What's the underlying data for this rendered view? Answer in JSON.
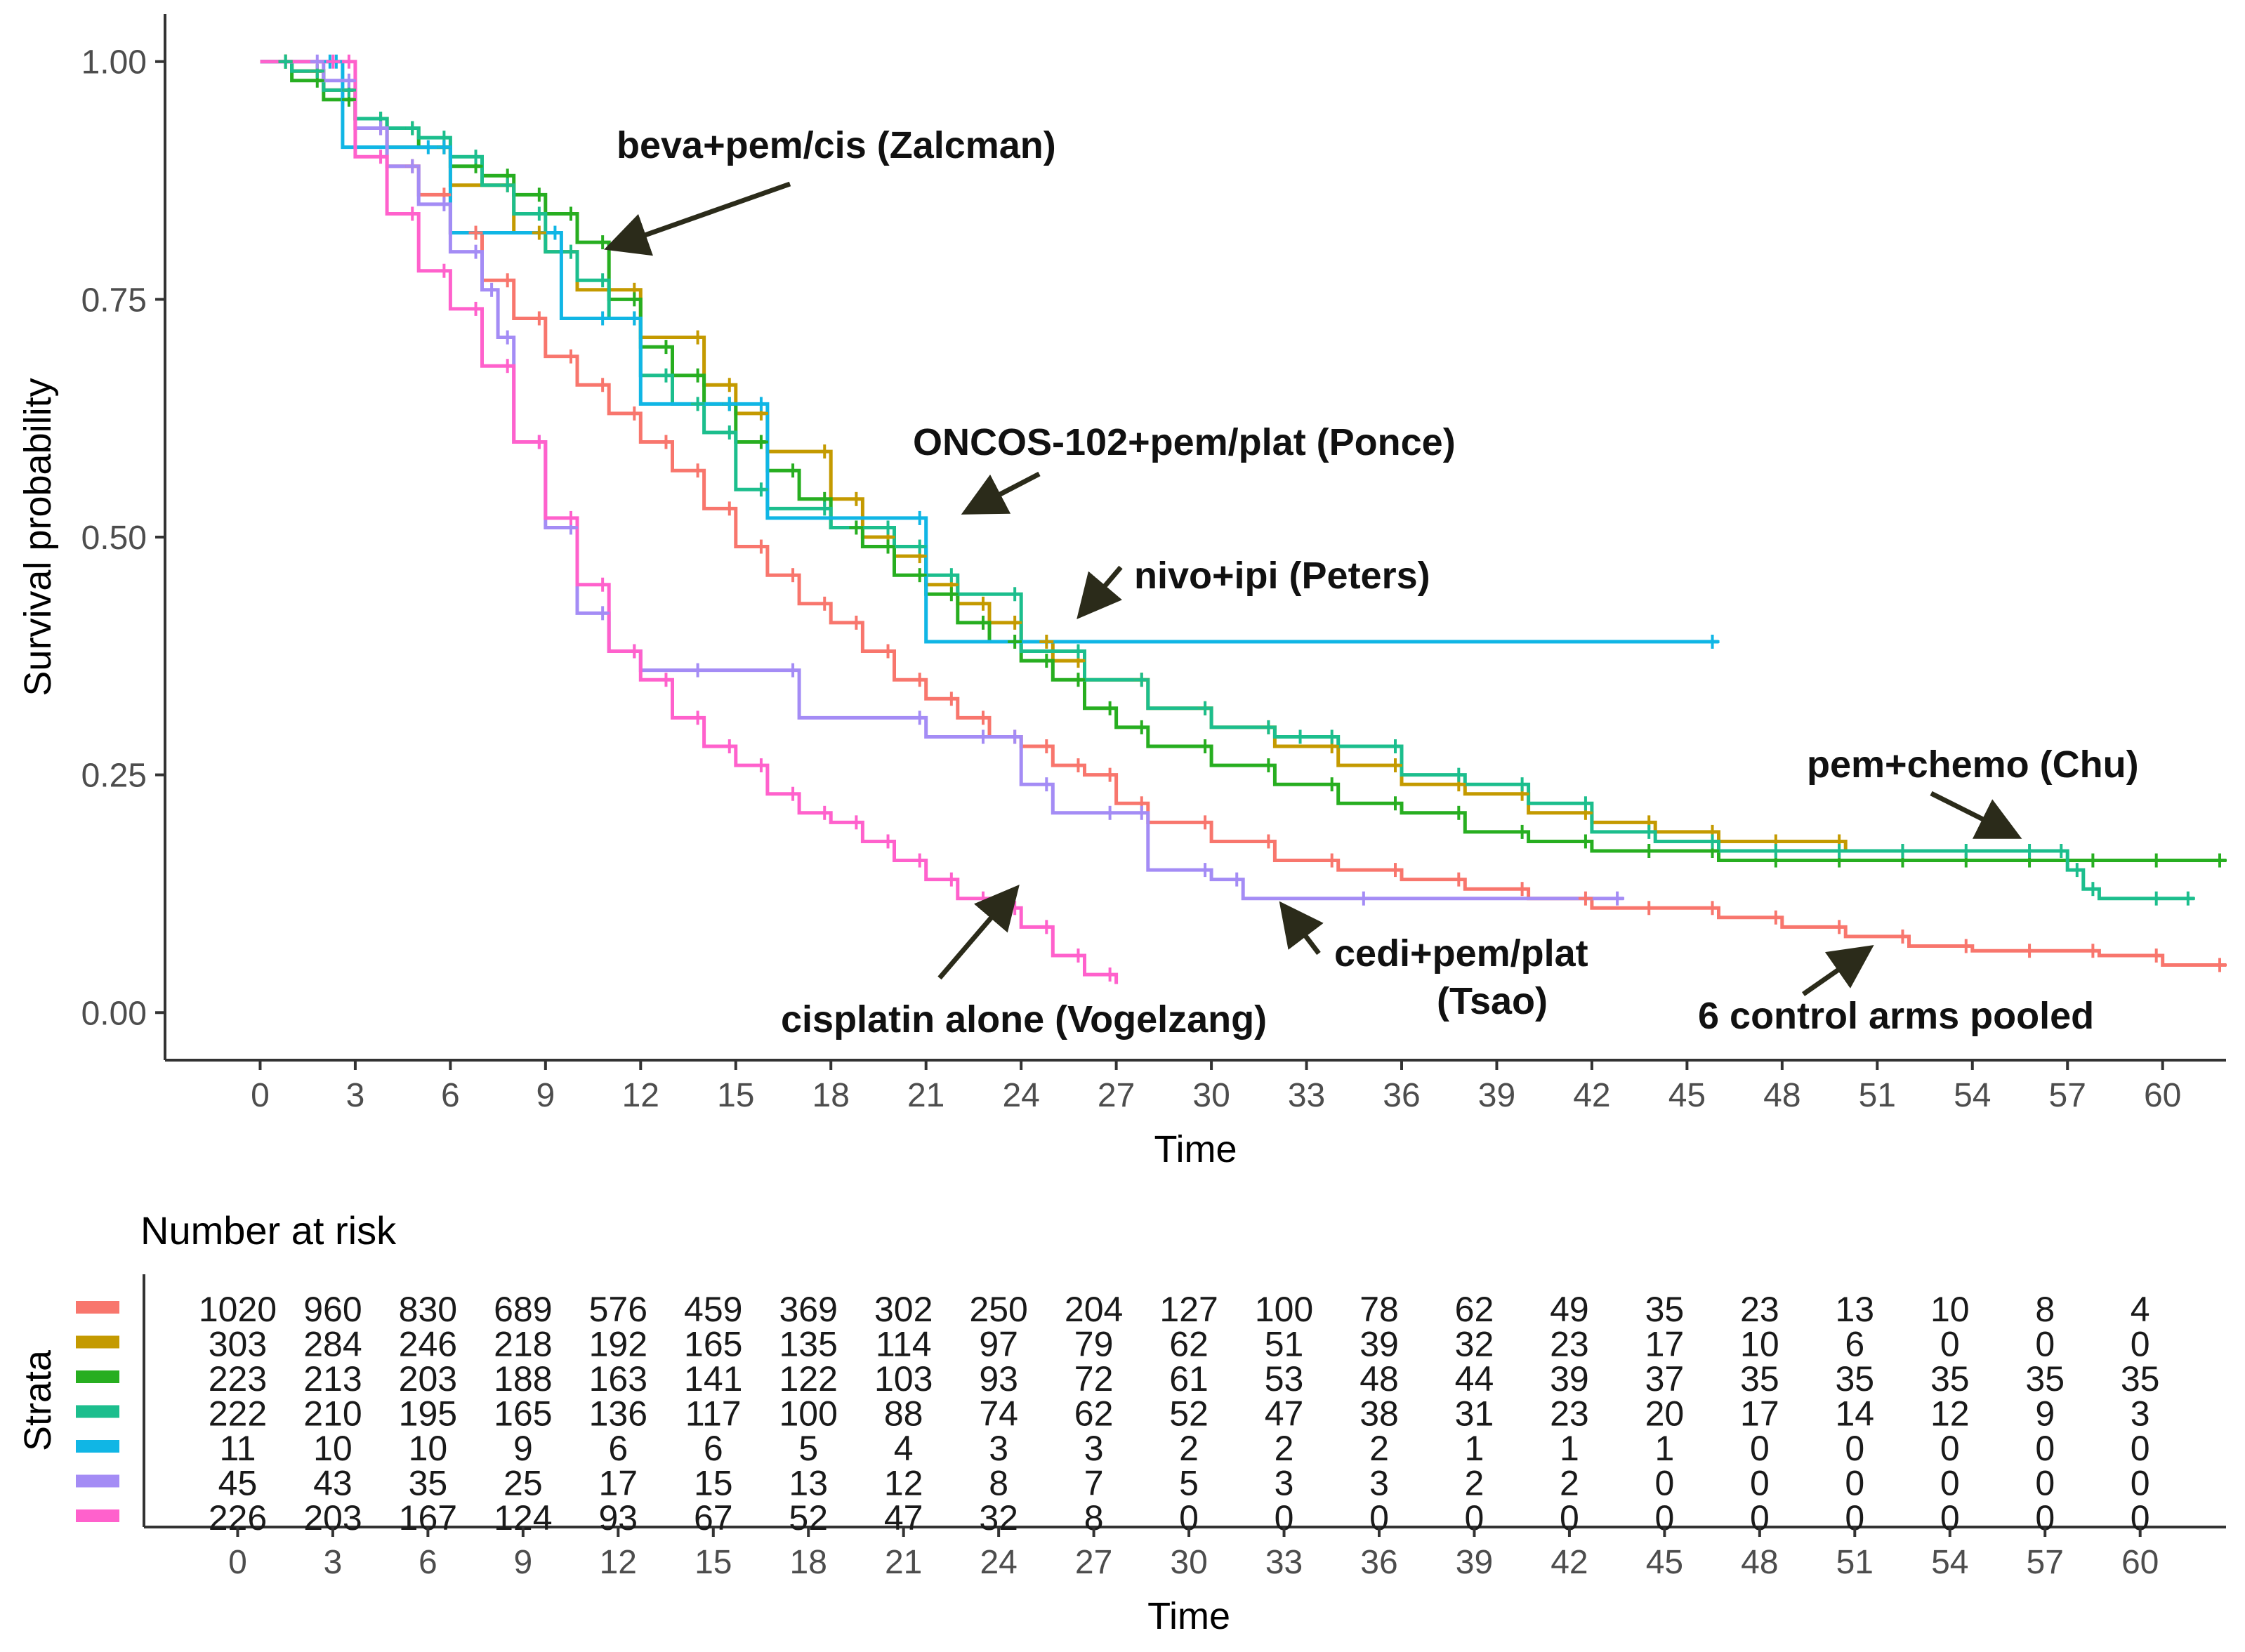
{
  "chart_data": [
    {
      "type": "line",
      "subtype": "kaplan-meier",
      "xlabel": "Time",
      "ylabel": "Survival probability",
      "xlim": [
        -3,
        62
      ],
      "ylim": [
        -0.05,
        1.05
      ],
      "xticks": [
        "0",
        "3",
        "6",
        "9",
        "12",
        "15",
        "18",
        "21",
        "24",
        "27",
        "30",
        "33",
        "36",
        "39",
        "42",
        "45",
        "48",
        "51",
        "54",
        "57",
        "60"
      ],
      "yticks": [
        "0.00",
        "0.25",
        "0.50",
        "0.75",
        "1.00"
      ],
      "grid": false,
      "series": [
        {
          "name": "6 control arms pooled",
          "color": "#F8766D",
          "x": [
            0,
            1,
            2,
            3,
            4,
            5,
            6,
            7,
            8,
            9,
            10,
            11,
            12,
            13,
            14,
            15,
            16,
            17,
            18,
            19,
            20,
            21,
            22,
            23,
            24,
            25,
            26,
            27,
            28,
            30,
            32,
            34,
            36,
            38,
            40,
            42,
            44,
            46,
            48,
            50,
            52,
            54,
            56,
            58,
            60,
            62
          ],
          "y": [
            1.0,
            0.99,
            0.97,
            0.93,
            0.89,
            0.86,
            0.82,
            0.77,
            0.73,
            0.69,
            0.66,
            0.63,
            0.6,
            0.57,
            0.53,
            0.49,
            0.46,
            0.43,
            0.41,
            0.38,
            0.35,
            0.33,
            0.31,
            0.29,
            0.28,
            0.26,
            0.25,
            0.22,
            0.2,
            0.18,
            0.16,
            0.15,
            0.14,
            0.13,
            0.12,
            0.11,
            0.11,
            0.1,
            0.09,
            0.08,
            0.07,
            0.065,
            0.065,
            0.06,
            0.05,
            0.05
          ]
        },
        {
          "name": "nivo+ipi (Peters)",
          "color": "#C49A00",
          "x": [
            0,
            1,
            2,
            3,
            4,
            6,
            8,
            9,
            10,
            12,
            14,
            15,
            16,
            18,
            19,
            20,
            21,
            22,
            23,
            24,
            25,
            26,
            28,
            30,
            32,
            34,
            36,
            38,
            40,
            42,
            44,
            46,
            48,
            50,
            52
          ],
          "y": [
            1.0,
            0.99,
            0.97,
            0.94,
            0.91,
            0.87,
            0.82,
            0.8,
            0.76,
            0.71,
            0.66,
            0.63,
            0.59,
            0.54,
            0.5,
            0.48,
            0.45,
            0.43,
            0.41,
            0.39,
            0.37,
            0.35,
            0.32,
            0.3,
            0.28,
            0.26,
            0.24,
            0.23,
            0.21,
            0.2,
            0.19,
            0.18,
            0.18,
            0.17,
            0.17
          ]
        },
        {
          "name": "beva+pem/cis (Zalcman)",
          "color": "#27AE20",
          "x": [
            0,
            1,
            2,
            3,
            4,
            5,
            6,
            7,
            8,
            9,
            10,
            11,
            12,
            13,
            14,
            15,
            16,
            17,
            18,
            19,
            20,
            21,
            22,
            23,
            24,
            25,
            26,
            27,
            28,
            30,
            32,
            34,
            36,
            38,
            40,
            42,
            44,
            46,
            48,
            50,
            52,
            54,
            56,
            58,
            60,
            62
          ],
          "y": [
            1.0,
            0.98,
            0.96,
            0.94,
            0.93,
            0.91,
            0.89,
            0.88,
            0.86,
            0.84,
            0.81,
            0.75,
            0.7,
            0.67,
            0.64,
            0.6,
            0.57,
            0.54,
            0.51,
            0.49,
            0.46,
            0.44,
            0.41,
            0.39,
            0.37,
            0.35,
            0.32,
            0.3,
            0.28,
            0.26,
            0.24,
            0.22,
            0.21,
            0.19,
            0.18,
            0.17,
            0.17,
            0.16,
            0.16,
            0.16,
            0.16,
            0.16,
            0.16,
            0.16,
            0.16,
            0.16
          ]
        },
        {
          "name": "pem+chemo (Chu)",
          "color": "#1CBE8D",
          "x": [
            0,
            1,
            2,
            3,
            4,
            5,
            6,
            7,
            8,
            9,
            10,
            11,
            12,
            13,
            14,
            15,
            16,
            18,
            20,
            21,
            22,
            24,
            26,
            28,
            30,
            32,
            33,
            34,
            36,
            38,
            40,
            42,
            44,
            46,
            48,
            50,
            52,
            54,
            56,
            57,
            57.5,
            58,
            60,
            61
          ],
          "y": [
            1.0,
            0.99,
            0.97,
            0.94,
            0.93,
            0.92,
            0.9,
            0.87,
            0.84,
            0.8,
            0.77,
            0.73,
            0.67,
            0.64,
            0.61,
            0.55,
            0.53,
            0.51,
            0.49,
            0.46,
            0.44,
            0.38,
            0.35,
            0.32,
            0.3,
            0.29,
            0.29,
            0.28,
            0.25,
            0.24,
            0.22,
            0.19,
            0.18,
            0.17,
            0.17,
            0.17,
            0.17,
            0.17,
            0.17,
            0.15,
            0.13,
            0.12,
            0.12,
            0.12
          ]
        },
        {
          "name": "ONCOS-102+pem/plat (Ponce)",
          "color": "#10B6E5",
          "x": [
            0,
            2.4,
            2.6,
            5.5,
            6,
            9.5,
            11,
            12,
            15,
            16,
            21,
            46
          ],
          "y": [
            1.0,
            1.0,
            0.91,
            0.91,
            0.82,
            0.73,
            0.73,
            0.64,
            0.64,
            0.52,
            0.39,
            0.39
          ]
        },
        {
          "name": "cedi+pem/plat (Tsao)",
          "color": "#A48CF5",
          "x": [
            0,
            2,
            3,
            4,
            5,
            6,
            7,
            7.5,
            8,
            9,
            10,
            11,
            12,
            14,
            17,
            21,
            23,
            24,
            25,
            27,
            28,
            30,
            31,
            35,
            43
          ],
          "y": [
            1.0,
            0.98,
            0.93,
            0.89,
            0.85,
            0.8,
            0.76,
            0.71,
            0.6,
            0.51,
            0.42,
            0.38,
            0.36,
            0.36,
            0.31,
            0.29,
            0.29,
            0.24,
            0.21,
            0.21,
            0.15,
            0.14,
            0.12,
            0.12,
            0.12
          ]
        },
        {
          "name": "cisplatin alone (Vogelzang)",
          "color": "#FF61CC",
          "x": [
            0,
            2.5,
            3,
            4,
            5,
            6,
            7,
            8,
            9,
            10,
            11,
            12,
            13,
            14,
            15,
            16,
            17,
            18,
            19,
            20,
            21,
            22,
            23,
            24,
            25,
            26,
            27
          ],
          "y": [
            1.0,
            1.0,
            0.9,
            0.84,
            0.78,
            0.74,
            0.68,
            0.6,
            0.52,
            0.45,
            0.38,
            0.35,
            0.31,
            0.28,
            0.26,
            0.23,
            0.21,
            0.2,
            0.18,
            0.16,
            0.14,
            0.12,
            0.11,
            0.09,
            0.06,
            0.04,
            0.03
          ]
        }
      ],
      "annotations": [
        {
          "text": "beva+pem/cis (Zalcman)",
          "target_series": "beva+pem/cis (Zalcman)"
        },
        {
          "text": "ONCOS-102+pem/plat (Ponce)",
          "target_series": "ONCOS-102+pem/plat (Ponce)"
        },
        {
          "text": "nivo+ipi (Peters)",
          "target_series": "nivo+ipi (Peters)"
        },
        {
          "text": "pem+chemo (Chu)",
          "target_series": "pem+chemo (Chu)"
        },
        {
          "text": "cedi+pem/plat",
          "text_line2": "(Tsao)",
          "target_series": "cedi+pem/plat (Tsao)"
        },
        {
          "text": "cisplatin alone (Vogelzang)",
          "target_series": "cisplatin alone (Vogelzang)"
        },
        {
          "text": "6 control arms pooled",
          "target_series": "6 control arms pooled"
        }
      ]
    },
    {
      "type": "table",
      "title": "Number at risk",
      "ylabel": "Strata",
      "xlabel": "Time",
      "columns": [
        "0",
        "3",
        "6",
        "9",
        "12",
        "15",
        "18",
        "21",
        "24",
        "27",
        "30",
        "33",
        "36",
        "39",
        "42",
        "45",
        "48",
        "51",
        "54",
        "57",
        "60"
      ],
      "rows": [
        {
          "color": "#F8766D",
          "values": [
            1020,
            960,
            830,
            689,
            576,
            459,
            369,
            302,
            250,
            204,
            127,
            100,
            78,
            62,
            49,
            35,
            23,
            13,
            10,
            8,
            4
          ]
        },
        {
          "color": "#C49A00",
          "values": [
            303,
            284,
            246,
            218,
            192,
            165,
            135,
            114,
            97,
            79,
            62,
            51,
            39,
            32,
            23,
            17,
            10,
            6,
            0,
            0,
            0
          ]
        },
        {
          "color": "#27AE20",
          "values": [
            223,
            213,
            203,
            188,
            163,
            141,
            122,
            103,
            93,
            72,
            61,
            53,
            48,
            44,
            39,
            37,
            35,
            35,
            35,
            35,
            35
          ]
        },
        {
          "color": "#1CBE8D",
          "values": [
            222,
            210,
            195,
            165,
            136,
            117,
            100,
            88,
            74,
            62,
            52,
            47,
            38,
            31,
            23,
            20,
            17,
            14,
            12,
            9,
            3
          ]
        },
        {
          "color": "#10B6E5",
          "values": [
            11,
            10,
            10,
            9,
            6,
            6,
            5,
            4,
            3,
            3,
            2,
            2,
            2,
            1,
            1,
            1,
            0,
            0,
            0,
            0,
            0
          ]
        },
        {
          "color": "#A48CF5",
          "values": [
            45,
            43,
            35,
            25,
            17,
            15,
            13,
            12,
            8,
            7,
            5,
            3,
            3,
            2,
            2,
            0,
            0,
            0,
            0,
            0,
            0
          ]
        },
        {
          "color": "#FF61CC",
          "values": [
            226,
            203,
            167,
            124,
            93,
            67,
            52,
            47,
            32,
            8,
            0,
            0,
            0,
            0,
            0,
            0,
            0,
            0,
            0,
            0,
            0
          ]
        }
      ]
    }
  ]
}
